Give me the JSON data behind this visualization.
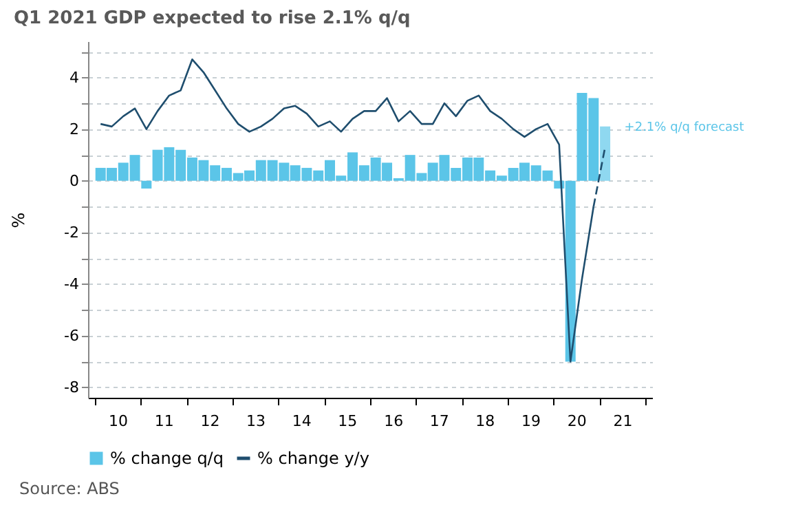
{
  "chart_data": {
    "type": "bar",
    "title": "Q1 2021 GDP expected to rise 2.1% q/q",
    "ylabel": "%",
    "x": [
      "2010-02-15",
      "2010-05-15",
      "2010-08-15",
      "2010-11-15",
      "2011-02-15",
      "2011-05-15",
      "2011-08-15",
      "2011-11-15",
      "2012-02-15",
      "2012-05-15",
      "2012-08-15",
      "2012-11-15",
      "2013-02-15",
      "2013-05-15",
      "2013-08-15",
      "2013-11-15",
      "2014-02-15",
      "2014-05-15",
      "2014-08-15",
      "2014-11-15",
      "2015-02-15",
      "2015-05-15",
      "2015-08-15",
      "2015-11-15",
      "2016-02-15",
      "2016-05-15",
      "2016-08-15",
      "2016-11-15",
      "2017-02-15",
      "2017-05-15",
      "2017-08-15",
      "2017-11-15",
      "2018-02-15",
      "2018-05-15",
      "2018-08-15",
      "2018-11-15",
      "2019-02-15",
      "2019-05-15",
      "2019-08-15",
      "2019-11-15",
      "2020-02-15",
      "2020-05-15",
      "2020-08-15",
      "2020-11-15",
      "2021-02-15"
    ],
    "series": [
      {
        "name": "% change y/y",
        "type": "line",
        "color": "#1f4e6e",
        "line_style": "solid",
        "values": [
          2.2,
          2.1,
          2.5,
          2.8,
          2.0,
          2.7,
          3.3,
          3.5,
          4.7,
          4.2,
          3.5,
          2.8,
          2.2,
          1.9,
          2.1,
          2.4,
          2.8,
          2.9,
          2.6,
          2.1,
          2.3,
          1.9,
          2.4,
          2.7,
          2.7,
          3.2,
          2.3,
          2.7,
          2.2,
          2.2,
          3.0,
          2.5,
          3.1,
          3.3,
          2.7,
          2.4,
          2.0,
          1.7,
          2.0,
          2.2,
          1.4,
          -7.0,
          -3.8,
          -1.0,
          null
        ]
      },
      {
        "type": "line",
        "color": "#1f4e6e",
        "line_style": "dashed",
        "values": [
          null,
          null,
          null,
          null,
          null,
          null,
          null,
          null,
          null,
          null,
          null,
          null,
          null,
          null,
          null,
          null,
          null,
          null,
          null,
          null,
          null,
          null,
          null,
          null,
          null,
          null,
          null,
          null,
          null,
          null,
          null,
          null,
          null,
          null,
          null,
          null,
          null,
          null,
          null,
          null,
          null,
          null,
          null,
          -1.0,
          1.3
        ]
      },
      {
        "name": "% change q/q",
        "type": "bar",
        "color": "#5bc5e8",
        "colors": [
          "#5bc5e8",
          "#5bc5e8",
          "#5bc5e8",
          "#5bc5e8",
          "#5bc5e8",
          "#5bc5e8",
          "#5bc5e8",
          "#5bc5e8",
          "#5bc5e8",
          "#5bc5e8",
          "#5bc5e8",
          "#5bc5e8",
          "#5bc5e8",
          "#5bc5e8",
          "#5bc5e8",
          "#5bc5e8",
          "#5bc5e8",
          "#5bc5e8",
          "#5bc5e8",
          "#5bc5e8",
          "#5bc5e8",
          "#5bc5e8",
          "#5bc5e8",
          "#5bc5e8",
          "#5bc5e8",
          "#5bc5e8",
          "#5bc5e8",
          "#5bc5e8",
          "#5bc5e8",
          "#5bc5e8",
          "#5bc5e8",
          "#5bc5e8",
          "#5bc5e8",
          "#5bc5e8",
          "#5bc5e8",
          "#5bc5e8",
          "#5bc5e8",
          "#5bc5e8",
          "#5bc5e8",
          "#5bc5e8",
          "#5bc5e8",
          "#5bc5e8",
          "#5bc5e8",
          "#5bc5e8",
          "#8fd8f0"
        ],
        "values": [
          0.5,
          0.5,
          0.7,
          1.0,
          -0.3,
          1.2,
          1.3,
          1.2,
          0.9,
          0.8,
          0.6,
          0.5,
          0.3,
          0.4,
          0.8,
          0.8,
          0.7,
          0.6,
          0.5,
          0.4,
          0.8,
          0.2,
          1.1,
          0.6,
          0.9,
          0.7,
          0.1,
          1.0,
          0.3,
          0.7,
          1.0,
          0.5,
          0.9,
          0.9,
          0.4,
          0.2,
          0.5,
          0.7,
          0.6,
          0.4,
          -0.3,
          -7.0,
          3.4,
          3.2,
          2.1
        ]
      }
    ],
    "xlim": [
      "2010-01-01",
      "2022-01-01"
    ],
    "xticks": [
      {
        "value": "2010",
        "label": null
      },
      {
        "value": "2010-07-01",
        "label": "10"
      },
      {
        "value": "2011",
        "label": null
      },
      {
        "value": "2011-07-01",
        "label": "11"
      },
      {
        "value": "2012",
        "label": null
      },
      {
        "value": "2012-07-01",
        "label": "12"
      },
      {
        "value": "2013",
        "label": null
      },
      {
        "value": "2013-07-01",
        "label": "13"
      },
      {
        "value": "2014",
        "label": null
      },
      {
        "value": "2014-07-01",
        "label": "14"
      },
      {
        "value": "2015",
        "label": null
      },
      {
        "value": "2015-07-01",
        "label": "15"
      },
      {
        "value": "2016",
        "label": null
      },
      {
        "value": "2016-07-01",
        "label": "16"
      },
      {
        "value": "2017",
        "label": null
      },
      {
        "value": "2017-07-01",
        "label": "17"
      },
      {
        "value": "2018",
        "label": null
      },
      {
        "value": "2018-07-01",
        "label": "18"
      },
      {
        "value": "2019",
        "label": null
      },
      {
        "value": "2019-07-01",
        "label": "19"
      },
      {
        "value": "2020",
        "label": null
      },
      {
        "value": "2020-07-01",
        "label": "20"
      },
      {
        "value": "2021",
        "label": null
      },
      {
        "value": "2021-07-01",
        "label": "21"
      },
      {
        "value": "2022",
        "label": null
      }
    ],
    "ylim": [
      -8.4,
      5.4
    ],
    "yticks": [
      -8,
      {
        "value": -7,
        "label": null
      },
      -6,
      {
        "value": -5,
        "label": null
      },
      -4,
      {
        "value": -3,
        "label": null
      },
      -2,
      {
        "value": -1,
        "label": null
      },
      0,
      {
        "value": 1,
        "label": null
      },
      2,
      {
        "value": 3,
        "label": null
      },
      4,
      {
        "value": 5,
        "label": null
      }
    ],
    "grid": "y",
    "legend": "bottom",
    "annotations": [
      {
        "text": "+2.1% q/q forecast",
        "x": "2021-02-15",
        "y": 2.1
      },
      "Source: ABS"
    ]
  }
}
